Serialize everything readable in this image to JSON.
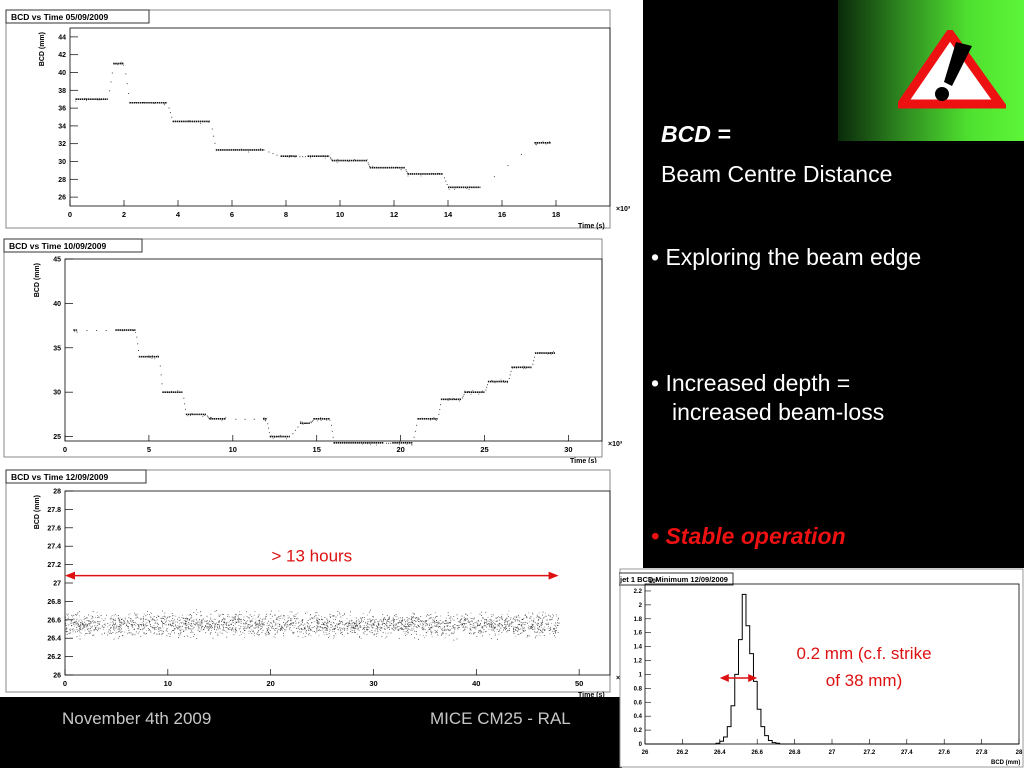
{
  "slide": {
    "bcd_heading": "BCD =",
    "bcd_definition": "Beam Centre Distance",
    "bullets": [
      {
        "text": "Exploring the beam edge",
        "style": "normal"
      },
      {
        "text": "Increased depth =",
        "text2": "increased beam-loss",
        "style": "normal"
      },
      {
        "text": "Stable operation",
        "style": "red-italic"
      }
    ],
    "footer_left": "November 4th 2009",
    "footer_center": "MICE CM25 - RAL",
    "warning_icon": "exclamation-warning-triangle-icon",
    "colors": {
      "background_panel": "#000000",
      "accent_red": "#ee1111",
      "accent_green": "#4ee030",
      "annotation_red": "#dd1111"
    }
  },
  "chart_data": [
    {
      "type": "scatter",
      "title": "BCD vs Time 05/09/2009",
      "xlabel": "Time (s)",
      "ylabel": "BCD (mm)",
      "x_multiplier": "×10³",
      "xlim": [
        0,
        20
      ],
      "ylim": [
        25,
        45
      ],
      "xticks": [
        0,
        2,
        4,
        6,
        8,
        10,
        12,
        14,
        16,
        18
      ],
      "yticks": [
        26,
        28,
        30,
        32,
        34,
        36,
        38,
        40,
        42,
        44
      ],
      "segments": [
        {
          "x0": 0.2,
          "x1": 1.4,
          "y": 37.0
        },
        {
          "x0": 1.6,
          "x1": 2.0,
          "y": 41.0
        },
        {
          "x0": 2.2,
          "x1": 3.6,
          "y": 36.6
        },
        {
          "x0": 3.8,
          "x1": 5.2,
          "y": 34.5
        },
        {
          "x0": 5.4,
          "x1": 7.2,
          "y": 31.3
        },
        {
          "x0": 7.8,
          "x1": 8.4,
          "y": 30.6
        },
        {
          "x0": 8.8,
          "x1": 9.6,
          "y": 30.6
        },
        {
          "x0": 9.7,
          "x1": 11.0,
          "y": 30.1
        },
        {
          "x0": 11.1,
          "x1": 12.4,
          "y": 29.3
        },
        {
          "x0": 12.5,
          "x1": 13.8,
          "y": 28.6
        },
        {
          "x0": 14.0,
          "x1": 15.2,
          "y": 27.1
        },
        {
          "x0": 17.2,
          "x1": 17.8,
          "y": 32.1
        }
      ]
    },
    {
      "type": "scatter",
      "title": "BCD vs Time 10/09/2009",
      "xlabel": "Time (s)",
      "ylabel": "BCD (mm)",
      "x_multiplier": "×10³",
      "xlim": [
        0,
        32
      ],
      "ylim": [
        24.5,
        45
      ],
      "xticks": [
        0,
        5,
        10,
        15,
        20,
        25,
        30
      ],
      "yticks": [
        25,
        30,
        35,
        40,
        45
      ],
      "segments": [
        {
          "x0": 0.5,
          "x1": 0.7,
          "y": 37.0
        },
        {
          "x0": 3.0,
          "x1": 4.2,
          "y": 37.0
        },
        {
          "x0": 4.4,
          "x1": 5.6,
          "y": 34.0
        },
        {
          "x0": 5.8,
          "x1": 7.0,
          "y": 30.0
        },
        {
          "x0": 7.2,
          "x1": 8.4,
          "y": 27.5
        },
        {
          "x0": 8.6,
          "x1": 9.6,
          "y": 27.0
        },
        {
          "x0": 11.8,
          "x1": 12.0,
          "y": 27.0
        },
        {
          "x0": 12.2,
          "x1": 13.4,
          "y": 25.0
        },
        {
          "x0": 14.0,
          "x1": 14.6,
          "y": 26.5
        },
        {
          "x0": 14.8,
          "x1": 15.8,
          "y": 27.0
        },
        {
          "x0": 16.0,
          "x1": 19.0,
          "y": 24.3
        },
        {
          "x0": 19.5,
          "x1": 20.7,
          "y": 24.3
        },
        {
          "x0": 21.0,
          "x1": 22.2,
          "y": 27.0
        },
        {
          "x0": 22.4,
          "x1": 23.6,
          "y": 29.2
        },
        {
          "x0": 23.8,
          "x1": 25.0,
          "y": 30.0
        },
        {
          "x0": 25.2,
          "x1": 26.4,
          "y": 31.2
        },
        {
          "x0": 26.6,
          "x1": 27.8,
          "y": 32.8
        },
        {
          "x0": 28.0,
          "x1": 29.2,
          "y": 34.4
        }
      ]
    },
    {
      "type": "scatter",
      "title": "BCD vs Time 12/09/2009",
      "xlabel": "Time (s)",
      "ylabel": "BCD (mm)",
      "x_multiplier": "×10³",
      "xlim": [
        0,
        53
      ],
      "ylim": [
        26,
        28
      ],
      "xticks": [
        0,
        10,
        20,
        30,
        40,
        50
      ],
      "yticks": [
        26,
        26.2,
        26.4,
        26.6,
        26.8,
        27,
        27.2,
        27.4,
        27.6,
        27.8,
        28
      ],
      "band": {
        "x0": 0,
        "x1": 48,
        "y_low": 26.42,
        "y_high": 26.66,
        "y_center": 26.55
      },
      "annotation": {
        "text": "> 13 hours",
        "x0": 0,
        "x1": 48,
        "y": 27.08
      }
    },
    {
      "type": "histogram",
      "title": "jet 1 BCD Minimum 12/09/2009",
      "xlabel": "BCD (mm)",
      "y_multiplier": "10³",
      "xlim": [
        26,
        28
      ],
      "ylim": [
        0,
        2.3
      ],
      "xticks": [
        26,
        26.2,
        26.4,
        26.6,
        26.8,
        27,
        27.2,
        27.4,
        27.6,
        27.8,
        28
      ],
      "yticks": [
        0,
        0.2,
        0.4,
        0.6,
        0.8,
        1,
        1.2,
        1.4,
        1.6,
        1.8,
        2,
        2.2
      ],
      "bins_start": 26.0,
      "bin_width": 0.02,
      "counts": [
        0,
        0,
        0,
        0,
        0,
        0,
        0,
        0,
        0,
        0,
        0,
        0,
        0,
        0,
        0,
        0,
        0,
        0,
        0,
        0.01,
        0.04,
        0.1,
        0.25,
        0.55,
        1.0,
        1.5,
        2.15,
        1.7,
        1.3,
        0.9,
        0.5,
        0.25,
        0.12,
        0.05,
        0.02,
        0.01,
        0,
        0,
        0,
        0,
        0,
        0,
        0,
        0,
        0,
        0,
        0,
        0,
        0,
        0,
        0,
        0,
        0,
        0,
        0,
        0,
        0,
        0,
        0,
        0,
        0,
        0,
        0,
        0,
        0,
        0,
        0,
        0,
        0,
        0,
        0,
        0,
        0,
        0,
        0,
        0,
        0,
        0,
        0,
        0,
        0,
        0,
        0,
        0,
        0,
        0,
        0,
        0,
        0,
        0,
        0,
        0,
        0,
        0,
        0,
        0,
        0,
        0,
        0,
        0
      ],
      "annotation": {
        "text": "0.2 mm (c.f. strike",
        "text2": "of 38 mm)",
        "x0": 26.4,
        "x1": 26.6
      }
    }
  ]
}
